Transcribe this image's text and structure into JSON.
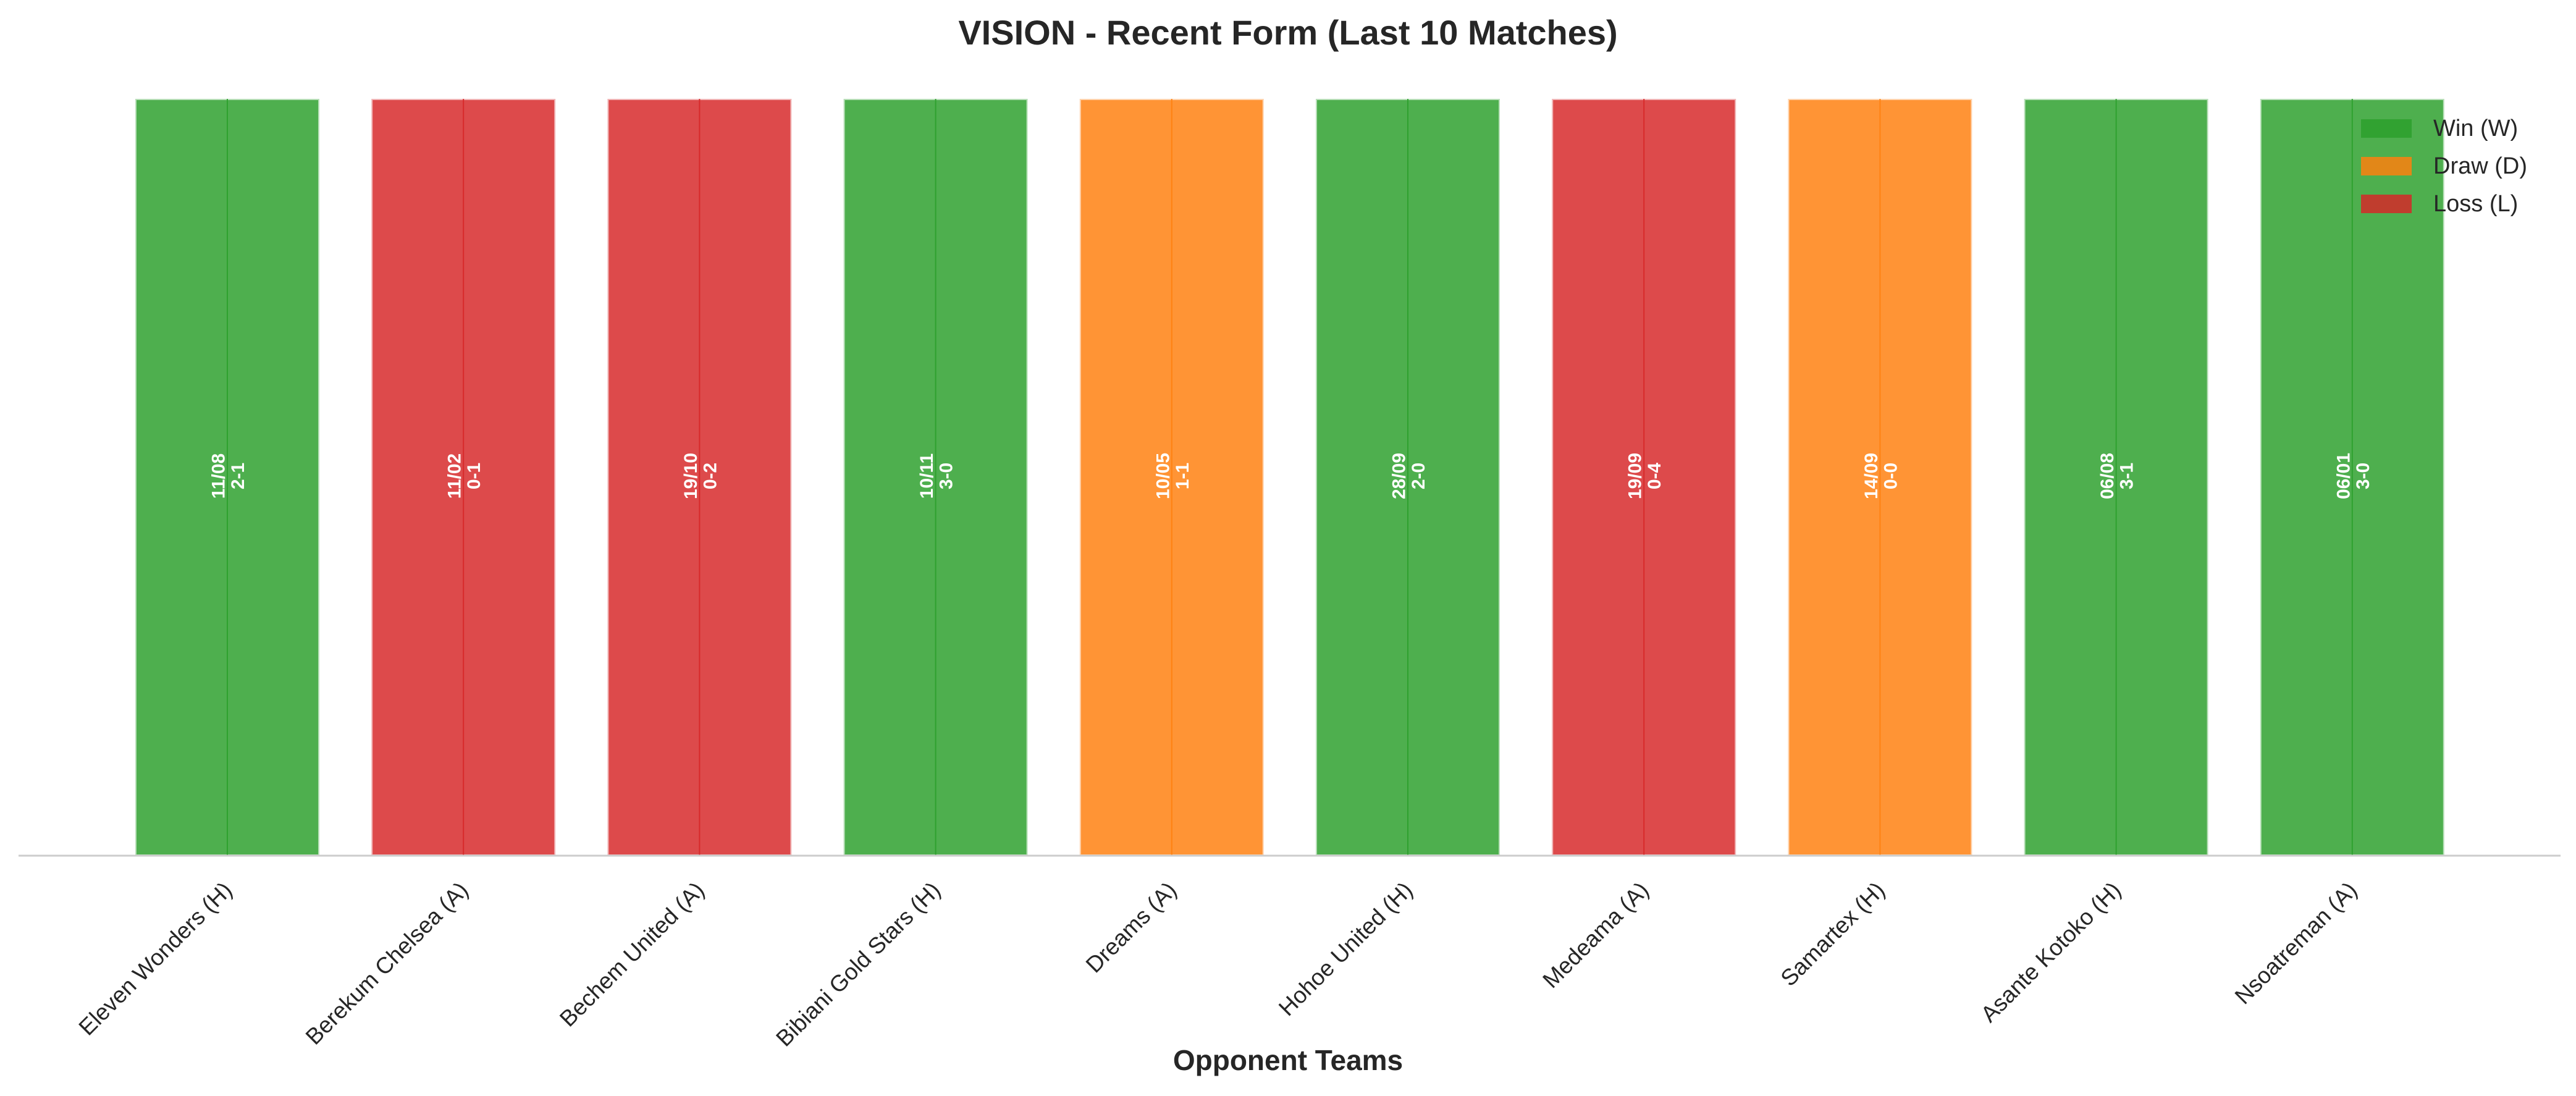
{
  "chart_data": {
    "type": "bar",
    "title": "VISION - Recent Form (Last 10 Matches)",
    "xlabel": "Opponent Teams",
    "ylabel": "",
    "ylim": [
      0,
      1
    ],
    "grid": false,
    "legend_position": "top-right",
    "categories": [
      "Eleven Wonders (H)",
      "Berekum Chelsea (A)",
      "Bechem United (A)",
      "Bibiani Gold Stars (H)",
      "Dreams (A)",
      "Hohoe United (H)",
      "Medeama (A)",
      "Samartex (H)",
      "Asante Kotoko (H)",
      "Nsoatreman (A)"
    ],
    "values": [
      1,
      1,
      1,
      1,
      1,
      1,
      1,
      1,
      1,
      1
    ],
    "results": [
      "W",
      "L",
      "L",
      "W",
      "D",
      "W",
      "L",
      "D",
      "W",
      "W"
    ],
    "dates": [
      "11/08",
      "11/02",
      "19/10",
      "10/11",
      "10/05",
      "28/09",
      "19/09",
      "14/09",
      "06/08",
      "06/01"
    ],
    "scores": [
      "2-1",
      "0-1",
      "0-2",
      "3-0",
      "1-1",
      "2-0",
      "0-4",
      "0-0",
      "3-1",
      "3-0"
    ],
    "legend": [
      {
        "key": "W",
        "label": "Win (W)",
        "color": "#2ca02c"
      },
      {
        "key": "D",
        "label": "Draw (D)",
        "color": "#ff7f0e"
      },
      {
        "key": "L",
        "label": "Loss (L)",
        "color": "#d62728"
      }
    ]
  }
}
